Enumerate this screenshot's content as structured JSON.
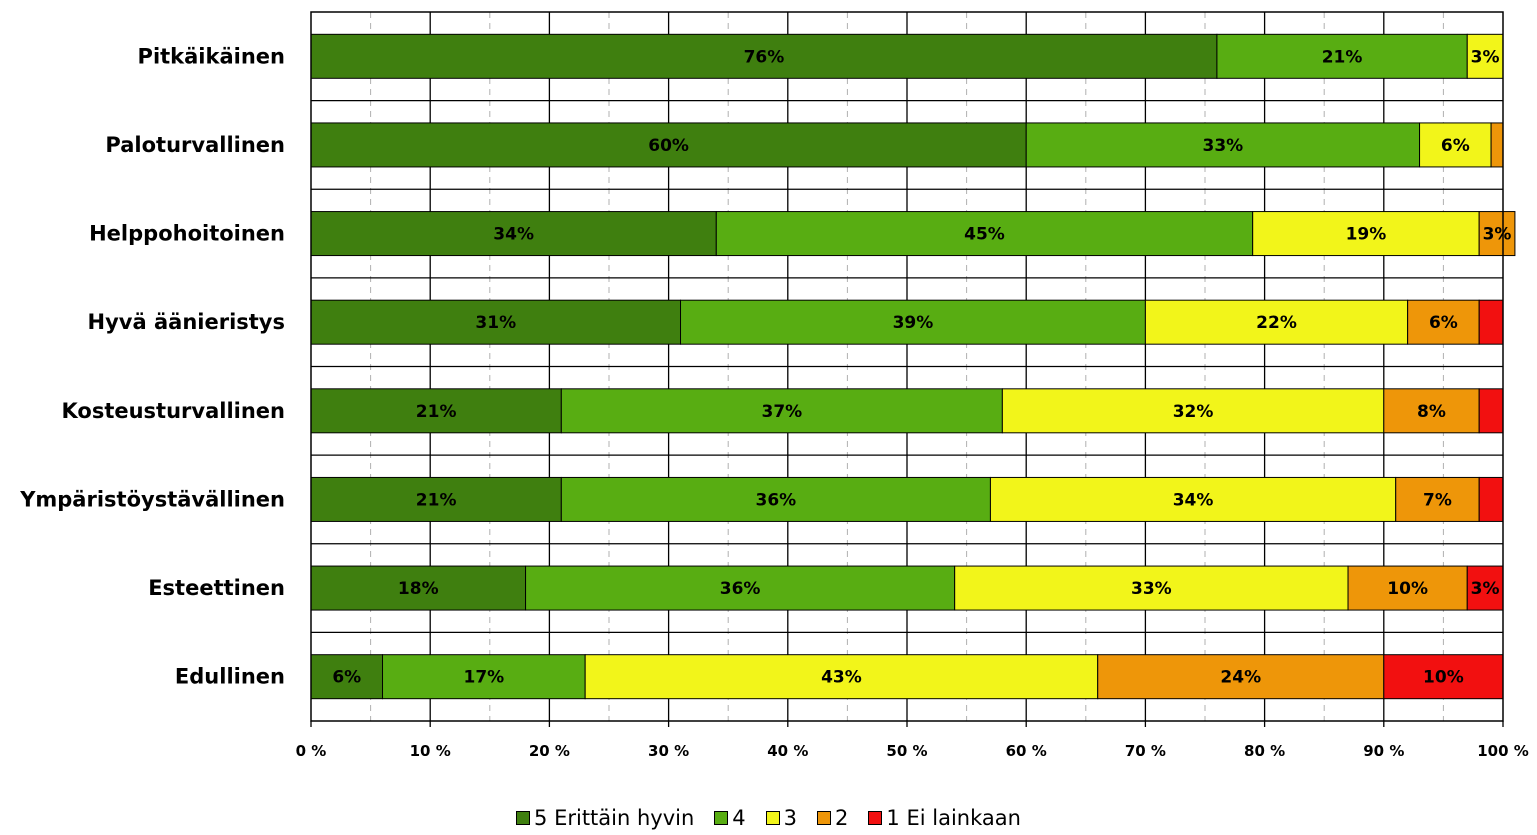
{
  "chart_data": {
    "type": "bar",
    "orientation": "horizontal",
    "stacked": true,
    "percent": true,
    "categories": [
      "Pitkäikäinen",
      "Paloturvallinen",
      "Helppohoitoinen",
      "Hyvä äänieristys",
      "Kosteusturvallinen",
      "Ympäristöystävällinen",
      "Esteettinen",
      "Edullinen"
    ],
    "series": [
      {
        "name": "5 Erittäin hyvin",
        "color": "#3f7f0f",
        "values": [
          76,
          60,
          34,
          31,
          21,
          21,
          18,
          6
        ],
        "labels": [
          "76%",
          "60%",
          "34%",
          "31%",
          "21%",
          "21%",
          "18%",
          "6%"
        ]
      },
      {
        "name": "4",
        "color": "#58ad12",
        "values": [
          21,
          33,
          45,
          39,
          37,
          36,
          36,
          17
        ],
        "labels": [
          "21%",
          "33%",
          "45%",
          "39%",
          "37%",
          "36%",
          "36%",
          "17%"
        ]
      },
      {
        "name": "3",
        "color": "#f2f51a",
        "values": [
          3,
          6,
          19,
          22,
          32,
          34,
          33,
          43
        ],
        "labels": [
          "3%",
          "6%",
          "19%",
          "22%",
          "32%",
          "34%",
          "33%",
          "43%"
        ]
      },
      {
        "name": "2",
        "color": "#ee9609",
        "values": [
          0,
          1,
          3,
          6,
          8,
          7,
          10,
          24
        ],
        "labels": [
          "",
          "",
          "3%",
          "6%",
          "8%",
          "7%",
          "10%",
          "24%"
        ]
      },
      {
        "name": "1 Ei lainkaan",
        "color": "#f21010",
        "values": [
          0,
          0,
          0,
          1,
          1,
          1,
          3,
          10
        ],
        "labels": [
          "",
          "",
          "",
          "",
          "",
          "",
          "3%",
          "10%"
        ]
      }
    ],
    "xlim": [
      0,
      100
    ],
    "xticks": [
      "0 %",
      "10 %",
      "20 %",
      "30 %",
      "40 %",
      "50 %",
      "60 %",
      "70 %",
      "80 %",
      "90 %",
      "100 %"
    ],
    "grid": true,
    "legend_position": "bottom"
  }
}
